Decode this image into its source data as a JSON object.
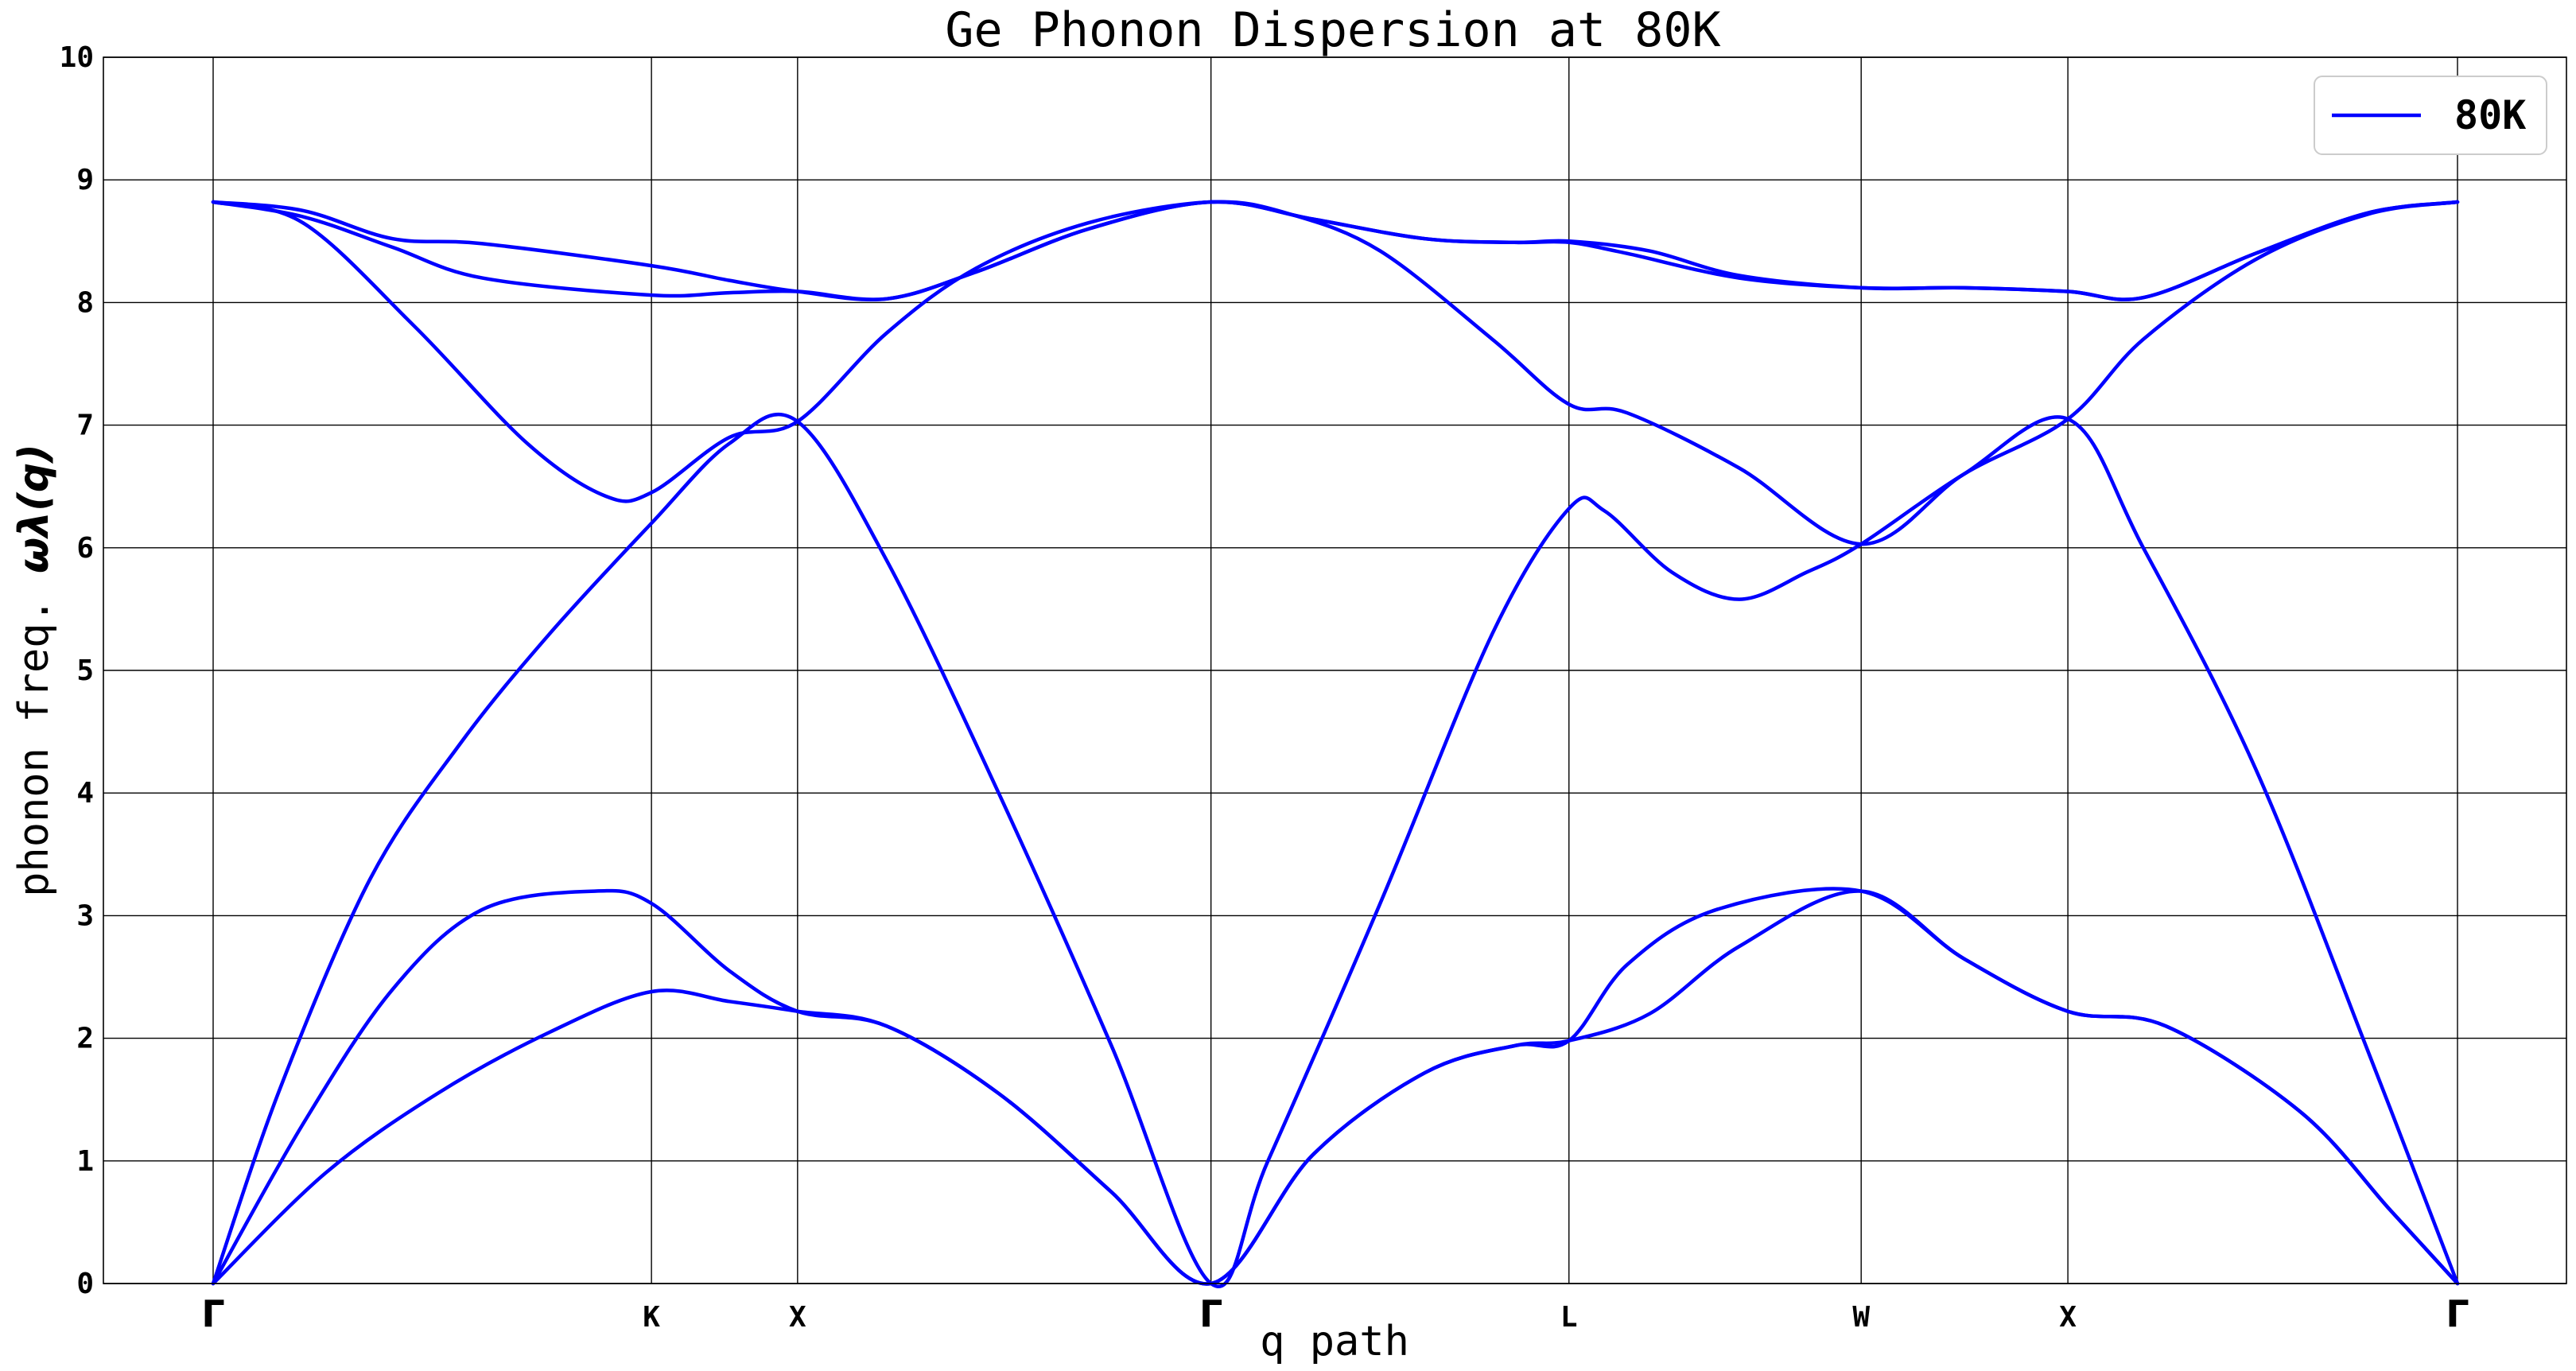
{
  "chart_data": {
    "type": "line",
    "title": "Ge Phonon Dispersion at 80K",
    "xlabel": "q path",
    "ylabel_prefix": "phonon freq. ",
    "ylabel_math": "ωλ(q)",
    "ylim": [
      0,
      10
    ],
    "xlim": [
      0,
      1
    ],
    "grid": true,
    "legend_position": "top-right",
    "yticks": [
      "0",
      "1",
      "2",
      "3",
      "4",
      "5",
      "6",
      "7",
      "8",
      "9",
      "10"
    ],
    "high_symmetry_points": [
      {
        "label": "Γ",
        "q": 0.0
      },
      {
        "label": "K",
        "q": 0.1953
      },
      {
        "label": "X",
        "q": 0.2604
      },
      {
        "label": "Γ",
        "q": 0.4446
      },
      {
        "label": "L",
        "q": 0.6041
      },
      {
        "label": "W",
        "q": 0.7343
      },
      {
        "label": "X",
        "q": 0.8264
      },
      {
        "label": "Γ",
        "q": 1.0
      }
    ],
    "series": [
      {
        "name": "80K",
        "color": "#0000ff",
        "branches": [
          {
            "x": [
              0,
              0.05,
              0.1,
              0.15,
              0.1953,
              0.23,
              0.2604,
              0.3,
              0.35,
              0.4,
              0.4446,
              0.49,
              0.54,
              0.58,
              0.6041,
              0.64,
              0.68,
              0.7343,
              0.78,
              0.8264,
              0.87,
              0.93,
              0.97,
              1.0
            ],
            "y": [
              0,
              0.9,
              1.55,
              2.05,
              2.38,
              2.3,
              2.22,
              2.1,
              1.55,
              0.75,
              0,
              1.05,
              1.72,
              1.94,
              1.98,
              2.2,
              2.75,
              3.2,
              2.65,
              2.22,
              2.1,
              1.4,
              0.6,
              0
            ]
          },
          {
            "x": [
              0,
              0.04,
              0.08,
              0.12,
              0.17,
              0.1953,
              0.23,
              0.2604,
              0.3,
              0.35,
              0.4,
              0.4446,
              0.49,
              0.54,
              0.58,
              0.6041,
              0.63,
              0.67,
              0.7343,
              0.78,
              0.8264,
              0.87,
              0.93,
              0.97,
              1.0
            ],
            "y": [
              0,
              1.3,
              2.4,
              3.05,
              3.2,
              3.1,
              2.55,
              2.22,
              2.1,
              1.55,
              0.75,
              0,
              1.05,
              1.72,
              1.94,
              1.98,
              2.6,
              3.05,
              3.2,
              2.65,
              2.22,
              2.1,
              1.4,
              0.6,
              0
            ]
          },
          {
            "x": [
              0,
              0.03,
              0.07,
              0.11,
              0.15,
              0.1953,
              0.23,
              0.2604,
              0.3,
              0.35,
              0.4,
              0.4446,
              0.47,
              0.52,
              0.57,
              0.6041,
              0.62,
              0.65,
              0.68,
              0.71,
              0.7343,
              0.78,
              0.8264,
              0.86,
              0.91,
              0.96,
              1.0
            ],
            "y": [
              0,
              1.6,
              3.3,
              4.4,
              5.3,
              6.2,
              6.85,
              7.03,
              5.9,
              4.0,
              1.95,
              0,
              1.0,
              3.1,
              5.3,
              6.32,
              6.3,
              5.8,
              5.58,
              5.8,
              6.03,
              6.6,
              7.05,
              6.0,
              4.2,
              1.9,
              0
            ]
          },
          {
            "x": [
              0,
              0.04,
              0.09,
              0.14,
              0.175,
              0.1953,
              0.23,
              0.2604,
              0.3,
              0.34,
              0.39,
              0.4446,
              0.48,
              0.52,
              0.57,
              0.6041,
              0.63,
              0.68,
              0.7343,
              0.78,
              0.8264,
              0.86,
              0.91,
              0.96,
              1.0
            ],
            "y": [
              8.82,
              8.65,
              7.8,
              6.85,
              6.42,
              6.45,
              6.9,
              7.03,
              7.75,
              8.28,
              8.65,
              8.82,
              8.72,
              8.42,
              7.7,
              7.17,
              7.1,
              6.65,
              6.03,
              6.6,
              7.05,
              7.7,
              8.35,
              8.72,
              8.82
            ]
          },
          {
            "x": [
              0,
              0.04,
              0.08,
              0.12,
              0.1953,
              0.23,
              0.2604,
              0.3,
              0.34,
              0.39,
              0.4446,
              0.49,
              0.54,
              0.58,
              0.6041,
              0.63,
              0.68,
              0.7343,
              0.78,
              0.8264,
              0.86,
              0.91,
              0.96,
              1.0
            ],
            "y": [
              8.82,
              8.7,
              8.45,
              8.2,
              8.06,
              8.08,
              8.09,
              8.03,
              8.25,
              8.6,
              8.82,
              8.68,
              8.52,
              8.49,
              8.49,
              8.4,
              8.2,
              8.12,
              8.12,
              8.09,
              8.04,
              8.4,
              8.73,
              8.82
            ]
          },
          {
            "x": [
              0,
              0.04,
              0.08,
              0.12,
              0.1953,
              0.23,
              0.2604,
              0.3,
              0.34,
              0.39,
              0.4446,
              0.49,
              0.54,
              0.58,
              0.6041,
              0.64,
              0.68,
              0.7343,
              0.78,
              0.8264,
              0.86,
              0.91,
              0.96,
              1.0
            ],
            "y": [
              8.82,
              8.75,
              8.52,
              8.48,
              8.3,
              8.18,
              8.09,
              8.03,
              8.25,
              8.6,
              8.82,
              8.68,
              8.52,
              8.49,
              8.5,
              8.42,
              8.22,
              8.12,
              8.12,
              8.09,
              8.04,
              8.4,
              8.73,
              8.82
            ]
          }
        ]
      }
    ]
  }
}
